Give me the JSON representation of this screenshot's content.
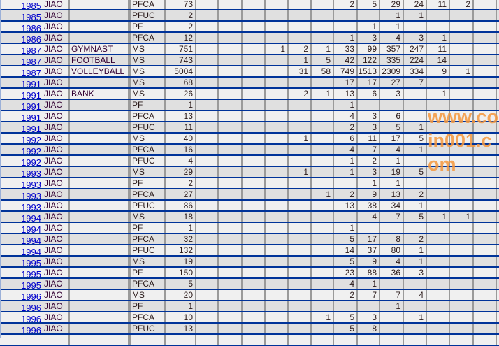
{
  "table": {
    "rows": [
      {
        "year": "1985",
        "org": "JIAO",
        "name": "",
        "type": "PFCA",
        "total": "73",
        "counts": [
          "",
          "",
          "",
          "",
          "",
          "",
          "2",
          "5",
          "29",
          "24",
          "11",
          "2",
          ""
        ]
      },
      {
        "year": "1985",
        "org": "JIAO",
        "name": "",
        "type": "PFUC",
        "total": "2",
        "counts": [
          "",
          "",
          "",
          "",
          "",
          "",
          "",
          "",
          "1",
          "1",
          "",
          "",
          ""
        ]
      },
      {
        "year": "1986",
        "org": "JIAO",
        "name": "",
        "type": "PF",
        "total": "2",
        "counts": [
          "",
          "",
          "",
          "",
          "",
          "",
          "",
          "1",
          "1",
          "",
          "",
          "",
          ""
        ]
      },
      {
        "year": "1986",
        "org": "JIAO",
        "name": "",
        "type": "PFCA",
        "total": "12",
        "counts": [
          "",
          "",
          "",
          "",
          "",
          "",
          "1",
          "3",
          "4",
          "3",
          "1",
          "",
          ""
        ]
      },
      {
        "year": "1987",
        "org": "JIAO",
        "name": "GYMNAST",
        "type": "MS",
        "total": "751",
        "counts": [
          "",
          "",
          "",
          "1",
          "2",
          "1",
          "33",
          "99",
          "357",
          "247",
          "11",
          "",
          ""
        ]
      },
      {
        "year": "1987",
        "org": "JIAO",
        "name": "FOOTBALL",
        "type": "MS",
        "total": "743",
        "counts": [
          "",
          "",
          "",
          "",
          "1",
          "5",
          "42",
          "122",
          "335",
          "224",
          "14",
          "",
          ""
        ]
      },
      {
        "year": "1987",
        "org": "JIAO",
        "name": "VOLLEYBALL",
        "type": "MS",
        "total": "5004",
        "counts": [
          "",
          "",
          "",
          "",
          "31",
          "58",
          "749",
          "1513",
          "2309",
          "334",
          "9",
          "1",
          ""
        ]
      },
      {
        "year": "1991",
        "org": "JIAO",
        "name": "",
        "type": "MS",
        "total": "68",
        "counts": [
          "",
          "",
          "",
          "",
          "",
          "",
          "17",
          "17",
          "27",
          "7",
          "",
          "",
          ""
        ]
      },
      {
        "year": "1991",
        "org": "JIAO",
        "name": "BANK",
        "type": "MS",
        "total": "26",
        "counts": [
          "",
          "",
          "",
          "",
          "2",
          "1",
          "13",
          "6",
          "3",
          "",
          "1",
          "",
          ""
        ]
      },
      {
        "year": "1991",
        "org": "JIAO",
        "name": "",
        "type": "PF",
        "total": "1",
        "counts": [
          "",
          "",
          "",
          "",
          "",
          "",
          "1",
          "",
          "",
          "",
          "",
          "",
          ""
        ]
      },
      {
        "year": "1991",
        "org": "JIAO",
        "name": "",
        "type": "PFCA",
        "total": "13",
        "counts": [
          "",
          "",
          "",
          "",
          "",
          "",
          "4",
          "3",
          "6",
          "",
          "",
          "",
          ""
        ]
      },
      {
        "year": "1991",
        "org": "JIAO",
        "name": "",
        "type": "PFUC",
        "total": "11",
        "counts": [
          "",
          "",
          "",
          "",
          "",
          "",
          "2",
          "3",
          "5",
          "1",
          "",
          "",
          ""
        ]
      },
      {
        "year": "1992",
        "org": "JIAO",
        "name": "",
        "type": "MS",
        "total": "40",
        "counts": [
          "",
          "",
          "",
          "",
          "1",
          "",
          "6",
          "11",
          "17",
          "5",
          "",
          "",
          ""
        ]
      },
      {
        "year": "1992",
        "org": "JIAO",
        "name": "",
        "type": "PFCA",
        "total": "16",
        "counts": [
          "",
          "",
          "",
          "",
          "",
          "",
          "4",
          "7",
          "4",
          "1",
          "",
          "",
          ""
        ]
      },
      {
        "year": "1992",
        "org": "JIAO",
        "name": "",
        "type": "PFUC",
        "total": "4",
        "counts": [
          "",
          "",
          "",
          "",
          "",
          "",
          "1",
          "2",
          "1",
          "",
          "",
          "",
          ""
        ]
      },
      {
        "year": "1993",
        "org": "JIAO",
        "name": "",
        "type": "MS",
        "total": "29",
        "counts": [
          "",
          "",
          "",
          "",
          "1",
          "",
          "1",
          "3",
          "19",
          "5",
          "",
          "",
          ""
        ]
      },
      {
        "year": "1993",
        "org": "JIAO",
        "name": "",
        "type": "PF",
        "total": "2",
        "counts": [
          "",
          "",
          "",
          "",
          "",
          "",
          "",
          "1",
          "1",
          "",
          "",
          "",
          ""
        ]
      },
      {
        "year": "1993",
        "org": "JIAO",
        "name": "",
        "type": "PFCA",
        "total": "27",
        "counts": [
          "",
          "",
          "",
          "",
          "",
          "1",
          "2",
          "9",
          "13",
          "2",
          "",
          "",
          ""
        ]
      },
      {
        "year": "1993",
        "org": "JIAO",
        "name": "",
        "type": "PFUC",
        "total": "86",
        "counts": [
          "",
          "",
          "",
          "",
          "",
          "",
          "13",
          "38",
          "34",
          "1",
          "",
          "",
          ""
        ]
      },
      {
        "year": "1994",
        "org": "JIAO",
        "name": "",
        "type": "MS",
        "total": "18",
        "counts": [
          "",
          "",
          "",
          "",
          "",
          "",
          "",
          "4",
          "7",
          "5",
          "1",
          "1",
          ""
        ]
      },
      {
        "year": "1994",
        "org": "JIAO",
        "name": "",
        "type": "PF",
        "total": "1",
        "counts": [
          "",
          "",
          "",
          "",
          "",
          "",
          "1",
          "",
          "",
          "",
          "",
          "",
          ""
        ]
      },
      {
        "year": "1994",
        "org": "JIAO",
        "name": "",
        "type": "PFCA",
        "total": "32",
        "counts": [
          "",
          "",
          "",
          "",
          "",
          "",
          "5",
          "17",
          "8",
          "2",
          "",
          "",
          ""
        ]
      },
      {
        "year": "1994",
        "org": "JIAO",
        "name": "",
        "type": "PFUC",
        "total": "132",
        "counts": [
          "",
          "",
          "",
          "",
          "",
          "",
          "14",
          "37",
          "80",
          "1",
          "",
          "",
          ""
        ]
      },
      {
        "year": "1995",
        "org": "JIAO",
        "name": "",
        "type": "MS",
        "total": "19",
        "counts": [
          "",
          "",
          "",
          "",
          "",
          "",
          "5",
          "9",
          "4",
          "1",
          "",
          "",
          ""
        ]
      },
      {
        "year": "1995",
        "org": "JIAO",
        "name": "",
        "type": "PF",
        "total": "150",
        "counts": [
          "",
          "",
          "",
          "",
          "",
          "",
          "23",
          "88",
          "36",
          "3",
          "",
          "",
          ""
        ]
      },
      {
        "year": "1995",
        "org": "JIAO",
        "name": "",
        "type": "PFCA",
        "total": "5",
        "counts": [
          "",
          "",
          "",
          "",
          "",
          "",
          "4",
          "1",
          "",
          "",
          "",
          "",
          ""
        ]
      },
      {
        "year": "1996",
        "org": "JIAO",
        "name": "",
        "type": "MS",
        "total": "20",
        "counts": [
          "",
          "",
          "",
          "",
          "",
          "",
          "2",
          "7",
          "7",
          "4",
          "",
          "",
          ""
        ]
      },
      {
        "year": "1996",
        "org": "JIAO",
        "name": "",
        "type": "PF",
        "total": "1",
        "counts": [
          "",
          "",
          "",
          "",
          "",
          "",
          "",
          "",
          "1",
          "",
          "",
          "",
          ""
        ]
      },
      {
        "year": "1996",
        "org": "JIAO",
        "name": "",
        "type": "PFCA",
        "total": "10",
        "counts": [
          "",
          "",
          "",
          "",
          "",
          "1",
          "5",
          "3",
          "",
          "1",
          "",
          "",
          ""
        ]
      },
      {
        "year": "1996",
        "org": "JIAO",
        "name": "",
        "type": "PFUC",
        "total": "13",
        "counts": [
          "",
          "",
          "",
          "",
          "",
          "",
          "5",
          "8",
          "",
          "",
          "",
          "",
          ""
        ]
      },
      {
        "year": "",
        "org": "",
        "name": "",
        "type": "",
        "total": "",
        "counts": [
          "",
          "",
          "",
          "",
          "",
          "",
          "",
          "",
          "",
          "",
          "",
          "",
          ""
        ]
      }
    ]
  },
  "watermark": "www.coin001.com",
  "colors": {
    "row_divider": "#003399",
    "year_link": "#0000cc",
    "row_alt": "#e0e0e0",
    "row_base": "#f0f0f0",
    "column_divider": "#9a9a9a"
  }
}
